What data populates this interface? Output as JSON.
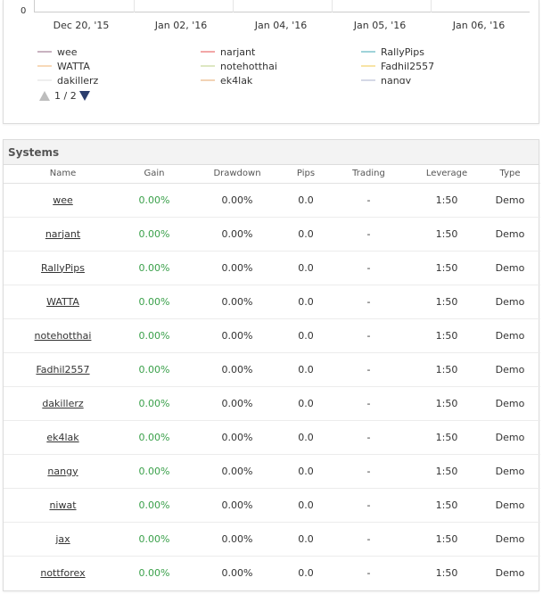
{
  "chart": {
    "y_tick": "0",
    "x_ticks": [
      "Dec 20, '15",
      "Jan 02, '16",
      "Jan 04, '16",
      "Jan 05, '16",
      "Jan 06, '16"
    ],
    "legend": [
      {
        "label": "wee",
        "color": "#c9b3c0"
      },
      {
        "label": "narjant",
        "color": "#f2a7a7"
      },
      {
        "label": "RallyPips",
        "color": "#9fd3d9"
      },
      {
        "label": "WATTA",
        "color": "#f7d9b8"
      },
      {
        "label": "notehotthai",
        "color": "#dde7c2"
      },
      {
        "label": "Fadhil2557",
        "color": "#f7e4a6"
      },
      {
        "label": "dakillerz",
        "color": "#eeeeee"
      },
      {
        "label": "ek4lak",
        "color": "#f2d3b5"
      },
      {
        "label": "nangy",
        "color": "#d5d8e6"
      }
    ],
    "pager": {
      "prev_icon": "triangle-up-icon",
      "text": "1 / 2",
      "next_icon": "triangle-down-icon"
    }
  },
  "systems": {
    "title": "Systems",
    "columns": [
      "Name",
      "Gain",
      "Drawdown",
      "Pips",
      "Trading",
      "Leverage",
      "Type"
    ],
    "rows": [
      {
        "name": "wee",
        "gain": "0.00%",
        "drawdown": "0.00%",
        "pips": "0.0",
        "trading": "-",
        "leverage": "1:50",
        "type": "Demo"
      },
      {
        "name": "narjant",
        "gain": "0.00%",
        "drawdown": "0.00%",
        "pips": "0.0",
        "trading": "-",
        "leverage": "1:50",
        "type": "Demo"
      },
      {
        "name": "RallyPips",
        "gain": "0.00%",
        "drawdown": "0.00%",
        "pips": "0.0",
        "trading": "-",
        "leverage": "1:50",
        "type": "Demo"
      },
      {
        "name": "WATTA",
        "gain": "0.00%",
        "drawdown": "0.00%",
        "pips": "0.0",
        "trading": "-",
        "leverage": "1:50",
        "type": "Demo"
      },
      {
        "name": "notehotthai",
        "gain": "0.00%",
        "drawdown": "0.00%",
        "pips": "0.0",
        "trading": "-",
        "leverage": "1:50",
        "type": "Demo"
      },
      {
        "name": "Fadhil2557",
        "gain": "0.00%",
        "drawdown": "0.00%",
        "pips": "0.0",
        "trading": "-",
        "leverage": "1:50",
        "type": "Demo"
      },
      {
        "name": "dakillerz",
        "gain": "0.00%",
        "drawdown": "0.00%",
        "pips": "0.0",
        "trading": "-",
        "leverage": "1:50",
        "type": "Demo"
      },
      {
        "name": "ek4lak",
        "gain": "0.00%",
        "drawdown": "0.00%",
        "pips": "0.0",
        "trading": "-",
        "leverage": "1:50",
        "type": "Demo"
      },
      {
        "name": "nangy",
        "gain": "0.00%",
        "drawdown": "0.00%",
        "pips": "0.0",
        "trading": "-",
        "leverage": "1:50",
        "type": "Demo"
      },
      {
        "name": "niwat",
        "gain": "0.00%",
        "drawdown": "0.00%",
        "pips": "0.0",
        "trading": "-",
        "leverage": "1:50",
        "type": "Demo"
      },
      {
        "name": "jax",
        "gain": "0.00%",
        "drawdown": "0.00%",
        "pips": "0.0",
        "trading": "-",
        "leverage": "1:50",
        "type": "Demo"
      },
      {
        "name": "nottforex",
        "gain": "0.00%",
        "drawdown": "0.00%",
        "pips": "0.0",
        "trading": "-",
        "leverage": "1:50",
        "type": "Demo"
      }
    ]
  }
}
